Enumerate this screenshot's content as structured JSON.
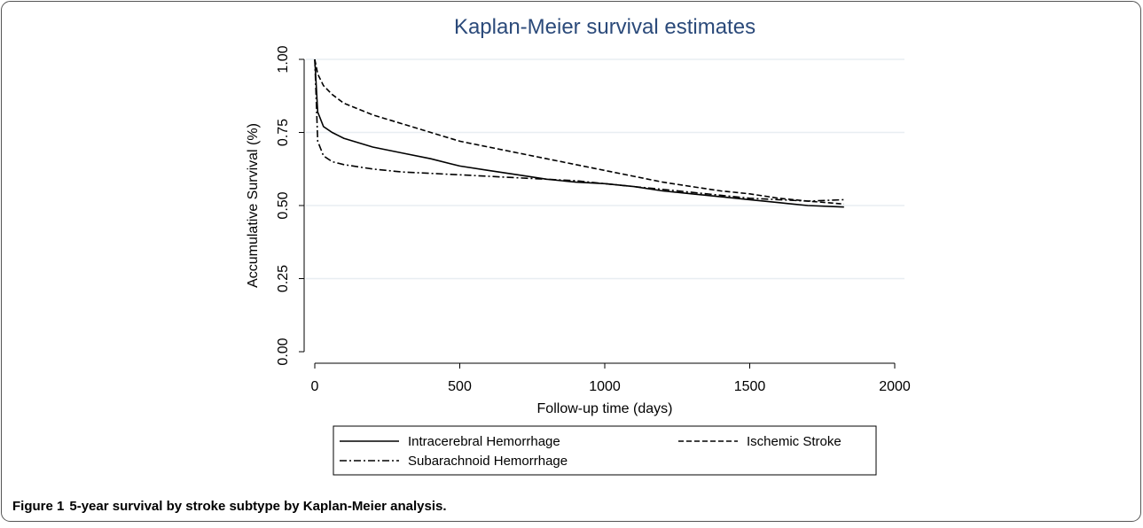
{
  "chart_data": {
    "type": "line",
    "title": "Kaplan-Meier survival estimates",
    "x_label": "Follow-up time (days)",
    "y_label": "Accumulative Survival (%)",
    "x": [
      0,
      10,
      30,
      60,
      100,
      200,
      300,
      400,
      500,
      600,
      700,
      800,
      900,
      1000,
      1100,
      1200,
      1300,
      1400,
      1500,
      1600,
      1700,
      1825
    ],
    "series": [
      {
        "name": "Intracerebral Hemorrhage",
        "color": "#000000",
        "style": "solid",
        "values": [
          1.0,
          0.82,
          0.77,
          0.75,
          0.73,
          0.7,
          0.68,
          0.66,
          0.635,
          0.62,
          0.605,
          0.59,
          0.58,
          0.575,
          0.565,
          0.55,
          0.54,
          0.53,
          0.52,
          0.51,
          0.5,
          0.495
        ]
      },
      {
        "name": "Ischemic Stroke",
        "color": "#000000",
        "style": "dashed",
        "values": [
          1.0,
          0.95,
          0.91,
          0.88,
          0.85,
          0.81,
          0.78,
          0.75,
          0.72,
          0.7,
          0.68,
          0.66,
          0.64,
          0.62,
          0.6,
          0.58,
          0.565,
          0.55,
          0.54,
          0.525,
          0.515,
          0.505
        ]
      },
      {
        "name": "Subarachnoid Hemorrhage",
        "color": "#000000",
        "style": "dashdot",
        "values": [
          1.0,
          0.72,
          0.67,
          0.65,
          0.64,
          0.625,
          0.615,
          0.61,
          0.605,
          0.6,
          0.595,
          0.59,
          0.585,
          0.575,
          0.565,
          0.555,
          0.545,
          0.535,
          0.525,
          0.52,
          0.515,
          0.52
        ]
      }
    ],
    "xlim": [
      0,
      2000
    ],
    "xticks": [
      0,
      500,
      1000,
      1500,
      2000
    ],
    "ylim": [
      0,
      1
    ],
    "yticks": [
      {
        "value": 0,
        "label": "0.00"
      },
      {
        "value": 0.25,
        "label": "0.25"
      },
      {
        "value": 0.5,
        "label": "0.50"
      },
      {
        "value": 0.75,
        "label": "0.75"
      },
      {
        "value": 1,
        "label": "1.00"
      }
    ],
    "grid": true,
    "title_color": "#2b4a7a"
  },
  "caption": {
    "label": "Figure 1",
    "text": "5-year survival by stroke subtype by Kaplan-Meier analysis."
  }
}
